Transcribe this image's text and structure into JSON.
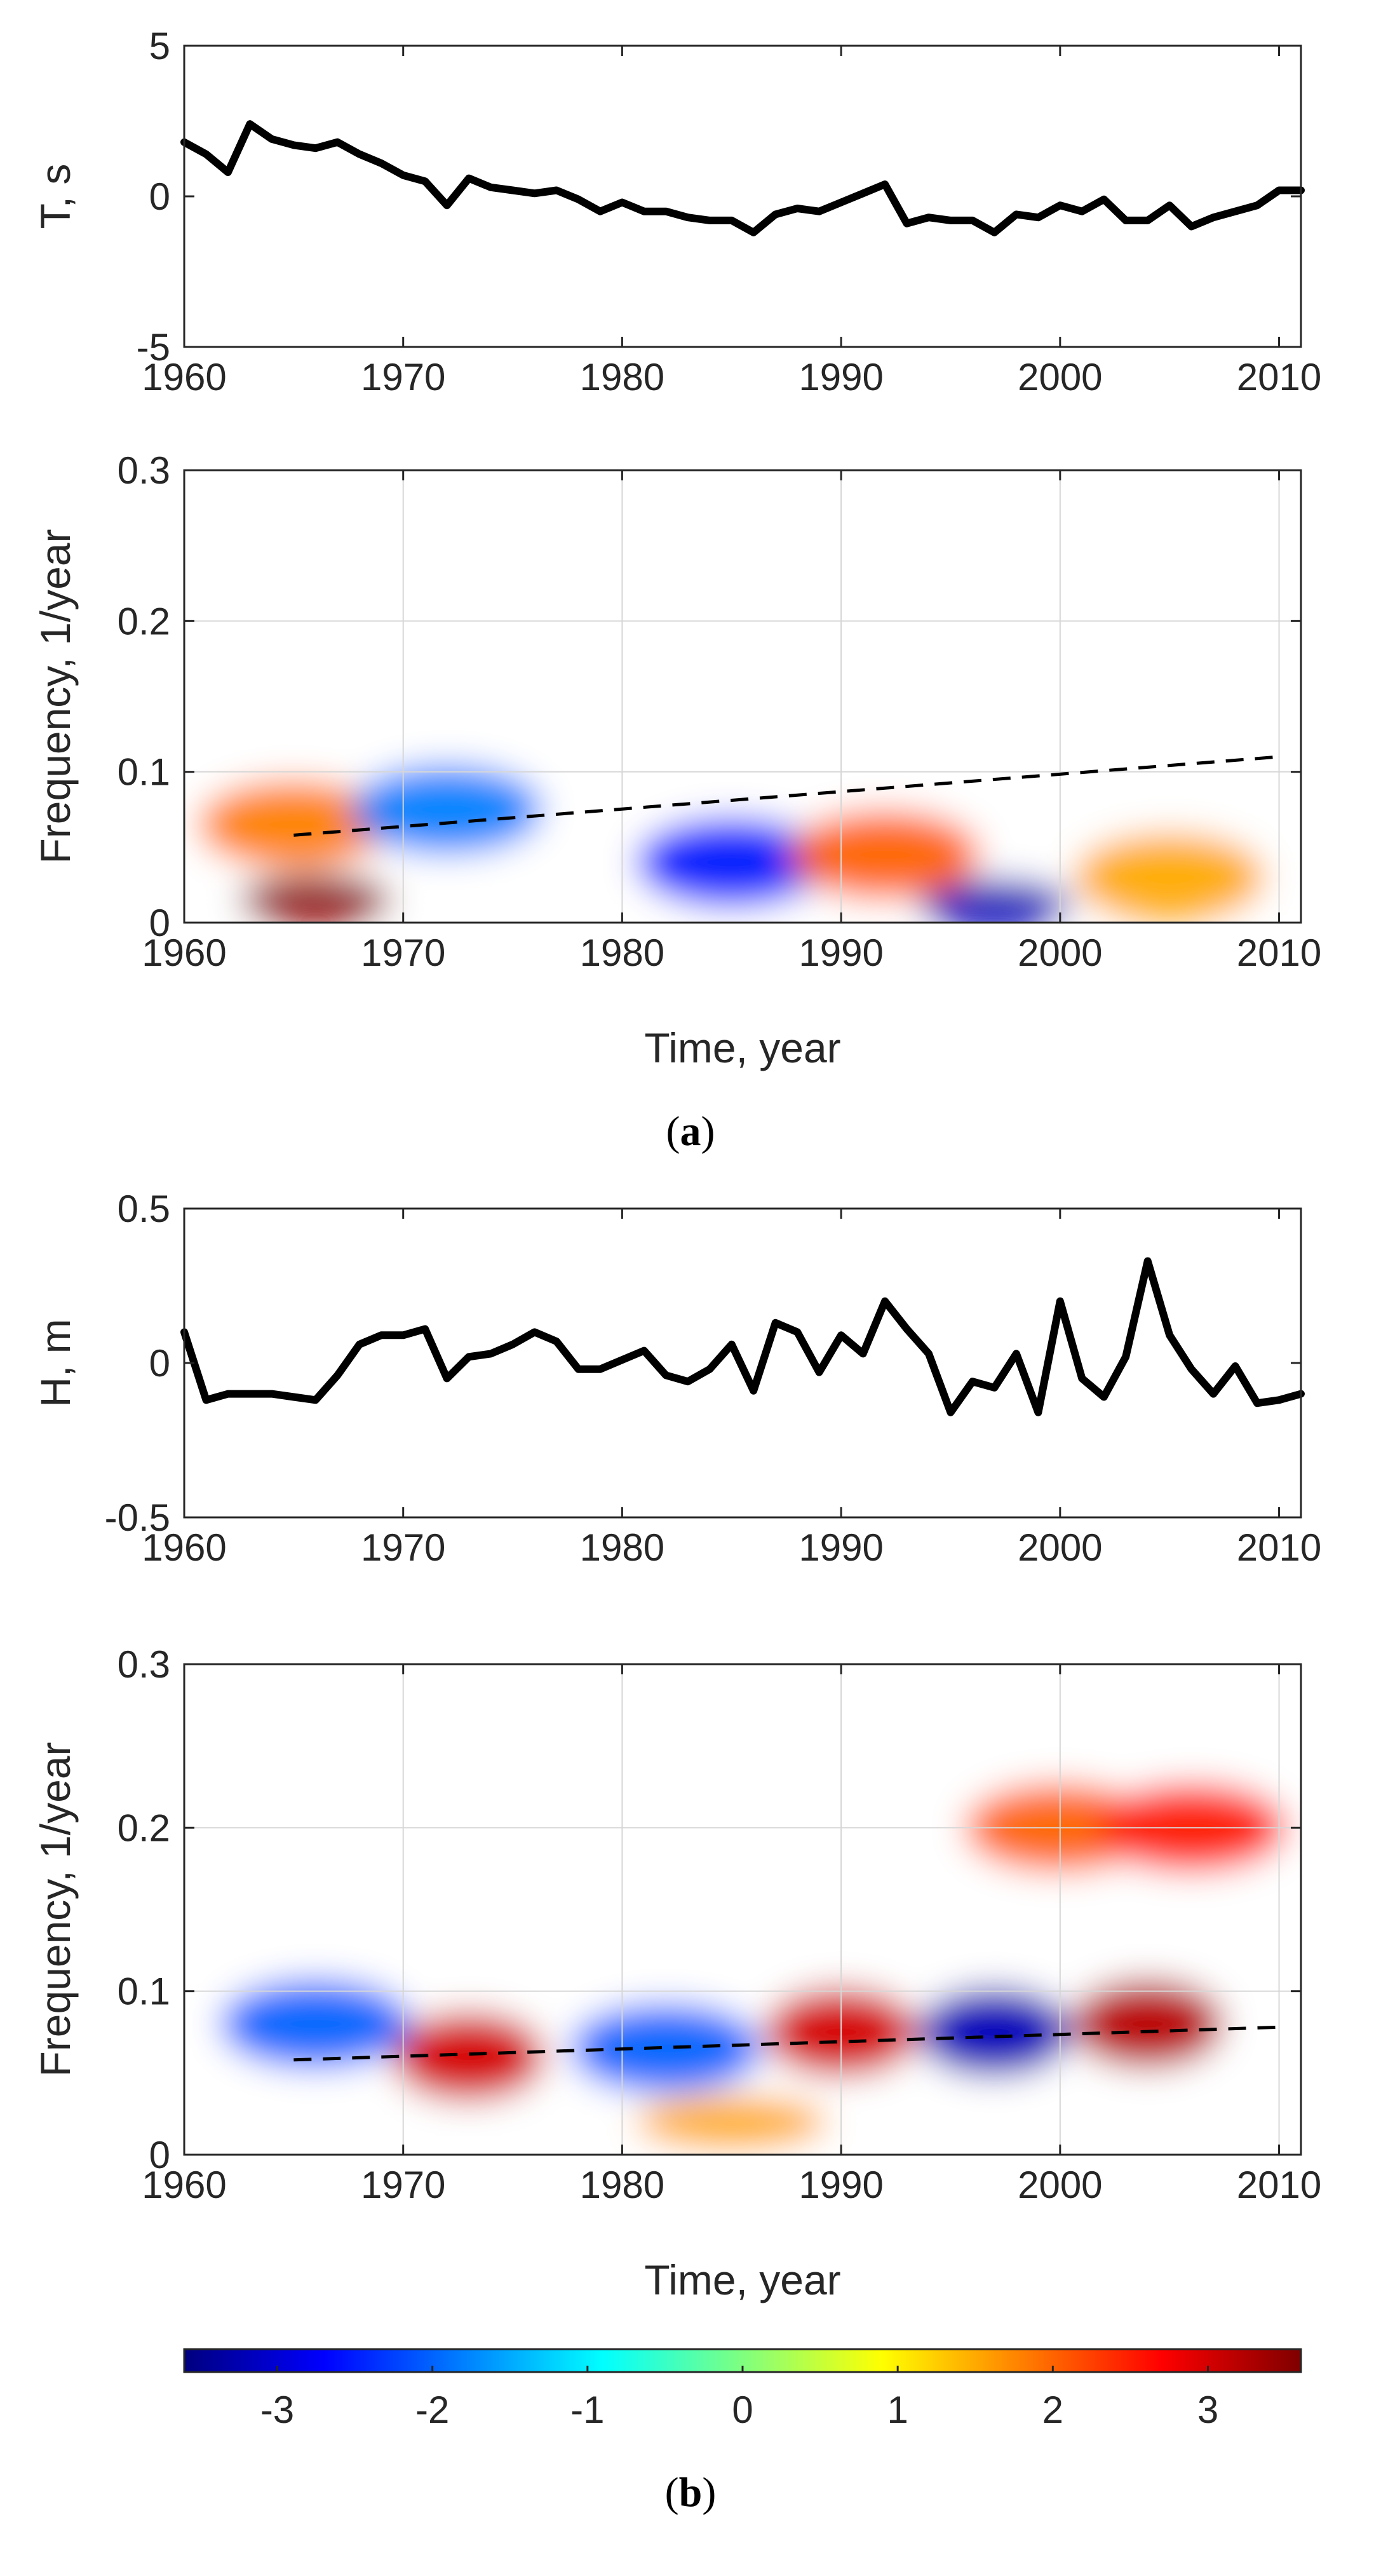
{
  "chart_data": [
    {
      "id": "a_top",
      "type": "line",
      "ylabel": "T, s",
      "xlabel": "",
      "xlim": [
        1960,
        2011
      ],
      "ylim": [
        -5,
        5
      ],
      "xticks": [
        1960,
        1970,
        1980,
        1990,
        2000,
        2010
      ],
      "yticks": [
        -5,
        0,
        5
      ],
      "x": [
        1960,
        1961,
        1962,
        1963,
        1964,
        1965,
        1966,
        1967,
        1968,
        1969,
        1970,
        1971,
        1972,
        1973,
        1974,
        1975,
        1976,
        1977,
        1978,
        1979,
        1980,
        1981,
        1982,
        1983,
        1984,
        1985,
        1986,
        1987,
        1988,
        1989,
        1990,
        1991,
        1992,
        1993,
        1994,
        1995,
        1996,
        1997,
        1998,
        1999,
        2000,
        2001,
        2002,
        2003,
        2004,
        2005,
        2006,
        2007,
        2008,
        2009,
        2010,
        2011
      ],
      "series": [
        {
          "name": "T",
          "values": [
            1.8,
            1.4,
            0.8,
            2.4,
            1.9,
            1.7,
            1.6,
            1.8,
            1.4,
            1.1,
            0.7,
            0.5,
            -0.3,
            0.6,
            0.3,
            0.2,
            0.1,
            0.2,
            -0.1,
            -0.5,
            -0.2,
            -0.5,
            -0.5,
            -0.7,
            -0.8,
            -0.8,
            -1.2,
            -0.6,
            -0.4,
            -0.5,
            -0.2,
            0.1,
            0.4,
            -0.9,
            -0.7,
            -0.8,
            -0.8,
            -1.2,
            -0.6,
            -0.7,
            -0.3,
            -0.5,
            -0.1,
            -0.8,
            -0.8,
            -0.3,
            -1.0,
            -0.7,
            -0.5,
            -0.3,
            0.2,
            0.2
          ]
        }
      ]
    },
    {
      "id": "a_wavelet",
      "type": "heatmap",
      "xlabel": "Time, year",
      "ylabel": "Frequency, 1/year",
      "xlim": [
        1960,
        2011
      ],
      "ylim": [
        0,
        0.3
      ],
      "xticks": [
        1960,
        1970,
        1980,
        1990,
        2000,
        2010
      ],
      "yticks": [
        0,
        0.1,
        0.2,
        0.3
      ],
      "ridge_line": {
        "x": [
          1965,
          2010
        ],
        "y": [
          0.058,
          0.11
        ]
      },
      "features": [
        {
          "x": 1966,
          "y": 0.015,
          "value": 3.5
        },
        {
          "x": 1965,
          "y": 0.065,
          "value": 1.8
        },
        {
          "x": 1972,
          "y": 0.075,
          "value": -1.8
        },
        {
          "x": 1985,
          "y": 0.04,
          "value": -2.5
        },
        {
          "x": 1997,
          "y": 0.012,
          "value": -3.2
        },
        {
          "x": 1992,
          "y": 0.045,
          "value": 2.0
        },
        {
          "x": 2005,
          "y": 0.03,
          "value": 1.5
        }
      ]
    },
    {
      "id": "b_top",
      "type": "line",
      "ylabel": "H, m",
      "xlabel": "",
      "xlim": [
        1960,
        2011
      ],
      "ylim": [
        -0.5,
        0.5
      ],
      "xticks": [
        1960,
        1970,
        1980,
        1990,
        2000,
        2010
      ],
      "yticks": [
        -0.5,
        0,
        0.5
      ],
      "x": [
        1960,
        1961,
        1962,
        1963,
        1964,
        1965,
        1966,
        1967,
        1968,
        1969,
        1970,
        1971,
        1972,
        1973,
        1974,
        1975,
        1976,
        1977,
        1978,
        1979,
        1980,
        1981,
        1982,
        1983,
        1984,
        1985,
        1986,
        1987,
        1988,
        1989,
        1990,
        1991,
        1992,
        1993,
        1994,
        1995,
        1996,
        1997,
        1998,
        1999,
        2000,
        2001,
        2002,
        2003,
        2004,
        2005,
        2006,
        2007,
        2008,
        2009,
        2010,
        2011
      ],
      "series": [
        {
          "name": "H",
          "values": [
            0.1,
            -0.12,
            -0.1,
            -0.1,
            -0.1,
            -0.11,
            -0.12,
            -0.04,
            0.06,
            0.09,
            0.09,
            0.11,
            -0.05,
            0.02,
            0.03,
            0.06,
            0.1,
            0.07,
            -0.02,
            -0.02,
            0.01,
            0.04,
            -0.04,
            -0.06,
            -0.02,
            0.06,
            -0.09,
            0.13,
            0.1,
            -0.03,
            0.09,
            0.03,
            0.2,
            0.11,
            0.03,
            -0.16,
            -0.06,
            -0.08,
            0.03,
            -0.16,
            0.2,
            -0.05,
            -0.11,
            0.02,
            0.33,
            0.09,
            -0.02,
            -0.1,
            -0.01,
            -0.13,
            -0.12,
            -0.1
          ]
        }
      ]
    },
    {
      "id": "b_wavelet",
      "type": "heatmap",
      "xlabel": "Time, year",
      "ylabel": "Frequency, 1/year",
      "xlim": [
        1960,
        2011
      ],
      "ylim": [
        0,
        0.3
      ],
      "xticks": [
        1960,
        1970,
        1980,
        1990,
        2000,
        2010
      ],
      "yticks": [
        0,
        0.1,
        0.2,
        0.3
      ],
      "ridge_line": {
        "x": [
          1965,
          2010
        ],
        "y": [
          0.058,
          0.078
        ]
      },
      "features": [
        {
          "x": 1973,
          "y": 0.06,
          "value": 3.0
        },
        {
          "x": 1990,
          "y": 0.075,
          "value": 3.0
        },
        {
          "x": 2004,
          "y": 0.08,
          "value": 3.2
        },
        {
          "x": 1997,
          "y": 0.075,
          "value": -3.2
        },
        {
          "x": 1966,
          "y": 0.08,
          "value": -2.0
        },
        {
          "x": 1982,
          "y": 0.065,
          "value": -2.0
        },
        {
          "x": 2000,
          "y": 0.2,
          "value": 2.0
        },
        {
          "x": 2006,
          "y": 0.2,
          "value": 2.5
        },
        {
          "x": 1985,
          "y": 0.02,
          "value": 1.5
        }
      ]
    }
  ],
  "colorbar": {
    "min": -3.6,
    "max": 3.6,
    "ticks": [
      -3,
      -2,
      -1,
      0,
      1,
      2,
      3
    ]
  },
  "panel_labels": [
    {
      "open": "(",
      "letter": "a",
      "close": ")"
    },
    {
      "open": "(",
      "letter": "b",
      "close": ")"
    }
  ]
}
